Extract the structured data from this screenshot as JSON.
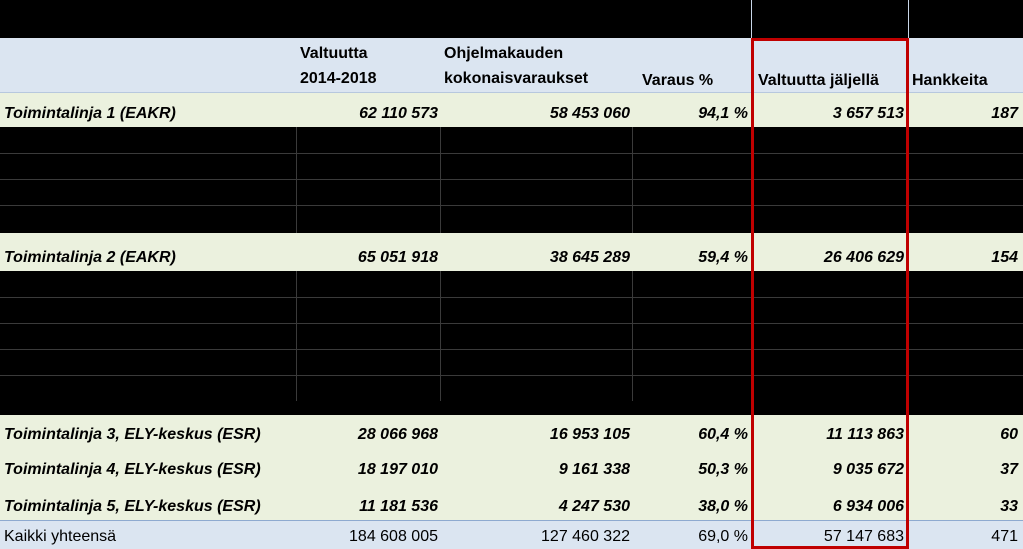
{
  "headers": {
    "col1_line1": "Valtuutta",
    "col1_line2": "2014-2018",
    "col2_line1": "Ohjelmakauden",
    "col2_line2": "kokonaisvaraukset",
    "col3": "Varaus %",
    "col4": "Valtuutta jäljellä",
    "col5": "Hankkeita"
  },
  "rows": [
    {
      "label": "Toimintalinja 1 (EAKR)",
      "valtuutta": "62 110 573",
      "varaukset": "58 453 060",
      "varaus_pct": "94,1 %",
      "jaljella": "3 657 513",
      "hankkeita": "187"
    },
    {
      "label": "Toimintalinja 2 (EAKR)",
      "valtuutta": "65 051 918",
      "varaukset": "38 645 289",
      "varaus_pct": "59,4 %",
      "jaljella": "26 406 629",
      "hankkeita": "154"
    },
    {
      "label": "Toimintalinja 3, ELY-keskus (ESR)",
      "valtuutta": "28 066 968",
      "varaukset": "16 953 105",
      "varaus_pct": "60,4 %",
      "jaljella": "11 113 863",
      "hankkeita": "60"
    },
    {
      "label": "Toimintalinja 4, ELY-keskus (ESR)",
      "valtuutta": "18 197 010",
      "varaukset": "9 161 338",
      "varaus_pct": "50,3 %",
      "jaljella": "9 035 672",
      "hankkeita": "37"
    },
    {
      "label": "Toimintalinja 5, ELY-keskus (ESR)",
      "valtuutta": "11 181 536",
      "varaukset": "4 247 530",
      "varaus_pct": "38,0 %",
      "jaljella": "6 934 006",
      "hankkeita": "33"
    }
  ],
  "total": {
    "label": "Kaikki yhteensä",
    "valtuutta": "184 608 005",
    "varaukset": "127 460 322",
    "varaus_pct": "69,0 %",
    "jaljella": "57 147 683",
    "hankkeita": "471"
  },
  "colors": {
    "header_bg": "#dbe5f1",
    "row_bg": "#ebf1de",
    "total_bg": "#dbe5f1",
    "highlight_border": "#c00000",
    "redacted": "#000000"
  }
}
